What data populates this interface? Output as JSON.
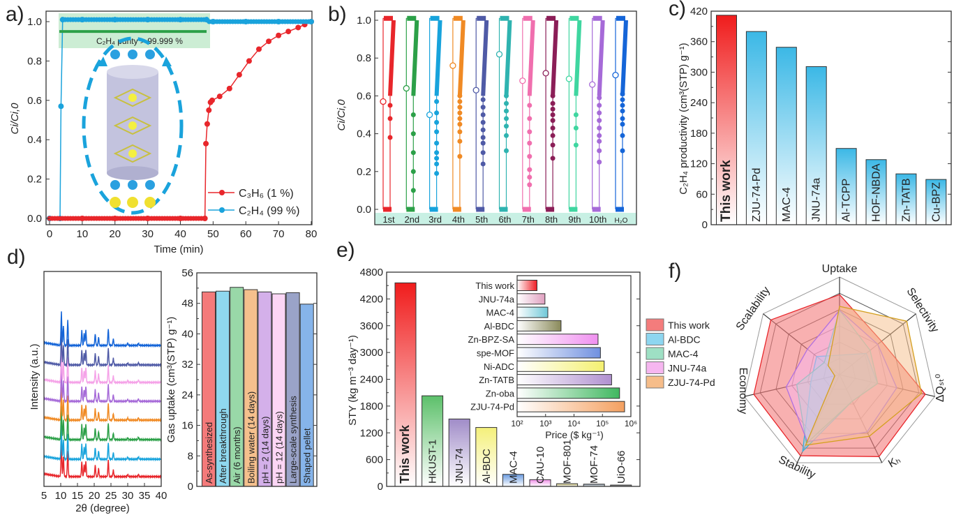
{
  "panel_labels": {
    "a": "a)",
    "b": "b)",
    "c": "c)",
    "d": "d)",
    "e": "e)",
    "f": "f)"
  },
  "chart_data": [
    {
      "id": "a",
      "type": "line",
      "xlabel": "Time (min)",
      "ylabel": "Ci/Ci,0",
      "xlim": [
        0,
        80
      ],
      "ylim": [
        0,
        1.0
      ],
      "xticks": [
        0,
        10,
        20,
        30,
        40,
        50,
        60,
        70,
        80
      ],
      "yticks": [
        "0.0",
        "0.2",
        "0.4",
        "0.6",
        "0.8",
        "1.0"
      ],
      "annotation": "C₂H₄ purity > 99.999 %",
      "series": [
        {
          "name": "C₃H₆ (1 %)",
          "color": "#e8262b",
          "x": [
            0,
            10,
            20,
            30,
            40,
            47.5,
            47.8,
            48.2,
            48.7,
            49.2,
            49.7,
            52,
            55,
            58,
            61,
            64,
            67,
            70,
            73,
            76,
            78,
            80
          ],
          "y": [
            0,
            0,
            0,
            0,
            0,
            0,
            0.38,
            0.48,
            0.55,
            0.59,
            0.6,
            0.62,
            0.66,
            0.73,
            0.8,
            0.86,
            0.9,
            0.93,
            0.95,
            0.97,
            0.985,
            1.0
          ]
        },
        {
          "name": "C₂H₄ (99 %)",
          "color": "#1aa3dc",
          "x": [
            0,
            3.2,
            3.5,
            4,
            10,
            20,
            30,
            40,
            48,
            50,
            60,
            70,
            80
          ],
          "y": [
            0,
            0,
            0.57,
            1.01,
            1.01,
            1.01,
            1.01,
            1.01,
            1.01,
            1.0,
            1.0,
            1.0,
            1.0
          ]
        },
        {
          "name": "",
          "color": "#2ca048",
          "x": [
            3,
            48
          ],
          "y": [
            0.95,
            0.95
          ]
        }
      ]
    },
    {
      "id": "b",
      "type": "scatter",
      "ylabel": "Ci/Ci,0",
      "ylim": [
        0,
        1.0
      ],
      "yticks": [
        "0.0",
        "0.2",
        "0.4",
        "0.6",
        "0.8",
        "1.0"
      ],
      "cycles": [
        {
          "label": "1st",
          "color": "#e8262b",
          "open_point": 0.57,
          "dots": [
            0.55,
            0.48,
            0.38
          ]
        },
        {
          "label": "2nd",
          "color": "#2ca048",
          "open_point": 0.64,
          "dots": [
            0.5,
            0.4,
            0.3,
            0.2,
            0.1
          ]
        },
        {
          "label": "3rd",
          "color": "#17a3dc",
          "open_point": 0.5,
          "dots": [
            0.57,
            0.51,
            0.46,
            0.41,
            0.35,
            0.3,
            0.27,
            0.24,
            0.19
          ]
        },
        {
          "label": "4th",
          "color": "#f08a24",
          "open_point": 0.76,
          "dots": [
            0.6,
            0.57,
            0.54,
            0.51,
            0.48,
            0.45,
            0.41,
            0.36,
            0.28
          ]
        },
        {
          "label": "5th",
          "color": "#4f5aa6",
          "open_point": 0.63,
          "dots": [
            0.58,
            0.54,
            0.5,
            0.46,
            0.42,
            0.38,
            0.35,
            0.3,
            0.24
          ]
        },
        {
          "label": "6th",
          "color": "#2fb3b0",
          "open_point": 0.82,
          "dots": [
            0.6,
            0.56,
            0.52,
            0.48,
            0.44,
            0.39,
            0.31
          ]
        },
        {
          "label": "7th",
          "color": "#f06fae",
          "open_point": 0.68,
          "dots": [
            0.55,
            0.48,
            0.41,
            0.35,
            0.28,
            0.21,
            0.17,
            0.13
          ]
        },
        {
          "label": "8th",
          "color": "#8b1e57",
          "open_point": 0.72,
          "dots": [
            0.6,
            0.56,
            0.53,
            0.5,
            0.47,
            0.43,
            0.39,
            0.34,
            0.27
          ]
        },
        {
          "label": "9th",
          "color": "#3fd6a0",
          "open_point": 0.69,
          "dots": [
            0.5,
            0.43,
            0.34
          ]
        },
        {
          "label": "10th",
          "color": "#a66ad8",
          "open_point": 0.66,
          "dots": [
            0.59,
            0.55,
            0.51,
            0.47,
            0.43,
            0.39,
            0.36,
            0.31,
            0.25
          ]
        },
        {
          "label": "H₂O",
          "color": "#1565d8",
          "open_point": 0.71,
          "dots": [
            0.61,
            0.58,
            0.55,
            0.52,
            0.48,
            0.45,
            0.39,
            0.31
          ]
        }
      ]
    },
    {
      "id": "c",
      "type": "bar",
      "ylabel": "C₂H₄ productivity (cm³(STP) g⁻¹)",
      "ylim": [
        0,
        420
      ],
      "yticks": [
        "0",
        "60",
        "120",
        "180",
        "240",
        "300",
        "360",
        "420"
      ],
      "categories": [
        "This work",
        "ZJU-74-Pd",
        "MAC-4",
        "JNU-74a",
        "Al-TCPP",
        "HOF-NBDA",
        "Zn-TATB",
        "Cu-BPZ"
      ],
      "values": [
        412,
        380,
        349,
        311,
        150,
        128,
        100,
        89
      ],
      "colors": [
        "#f01c1c",
        "#3bb8e6",
        "#3bb8e6",
        "#3bb8e6",
        "#3bb8e6",
        "#3bb8e6",
        "#3bb8e6",
        "#3bb8e6"
      ]
    },
    {
      "id": "d-xrd",
      "type": "line",
      "xlabel": "2θ (degree)",
      "ylabel": "Intensity (a.u.)",
      "xlim": [
        5,
        40
      ],
      "xticks": [
        5,
        10,
        15,
        20,
        25,
        30,
        35,
        40
      ],
      "peaks_deg": [
        10.2,
        10.8,
        12.1,
        16.3,
        17.0,
        17.5,
        20.3,
        21.3,
        24.2,
        25.7,
        30.0,
        33.2
      ],
      "peak_rel_heights": [
        1.0,
        0.6,
        0.75,
        0.45,
        0.35,
        0.45,
        0.35,
        0.25,
        0.5,
        0.2,
        0.06,
        0.07
      ],
      "traces_bottom_to_top": [
        "#e8262b",
        "#17a3dc",
        "#2ca048",
        "#f08a24",
        "#a66ad8",
        "#f5a3e8",
        "#4f5aa6",
        "#1565d8"
      ]
    },
    {
      "id": "d-uptake",
      "type": "bar",
      "ylabel": "Gas uptake (cm³(STP) g⁻¹)",
      "ylim": [
        0,
        56
      ],
      "yticks": [
        "0",
        "8",
        "16",
        "24",
        "32",
        "40",
        "48",
        "56"
      ],
      "categories": [
        "As-synthesized",
        "After breakthrough",
        "Air (6 months)",
        "Boiling water (14 days)",
        "pH = 2 (14 days)",
        "pH = 12 (14 days)",
        "Large-scale synthesis",
        "Shaped pellet"
      ],
      "values": [
        51.0,
        51.2,
        52.2,
        51.6,
        51.0,
        50.5,
        50.8,
        47.8
      ],
      "colors": [
        "#f47a7a",
        "#8fd8ef",
        "#99d8a8",
        "#f5c08d",
        "#d4b0ea",
        "#fcd6f5",
        "#9aa3c8",
        "#86b4ea"
      ]
    },
    {
      "id": "e",
      "type": "bar",
      "ylabel": "STY (kg m⁻³ day⁻¹)",
      "ylim": [
        0,
        4800
      ],
      "yticks": [
        "0",
        "600",
        "1200",
        "1800",
        "2400",
        "3000",
        "3600",
        "4200",
        "4800"
      ],
      "categories": [
        "This work",
        "HKUST-1",
        "JNU-74",
        "Al-BDC",
        "MAC-4",
        "CAU-10",
        "MOF-801",
        "MOF-74",
        "UiO-66"
      ],
      "values": [
        4560,
        2030,
        1510,
        1320,
        270,
        150,
        60,
        50,
        30
      ],
      "colors": [
        "#f01c1c",
        "#5cc06a",
        "#a08cc8",
        "#f4f07a",
        "#6a9be0",
        "#f090e8",
        "#c8c070",
        "#708090",
        "#404040"
      ],
      "inset": {
        "type": "bar-horizontal",
        "xlabel": "Price ($ kg⁻¹)",
        "xscale": "log",
        "xlim": [
          100,
          1000000
        ],
        "xticks": [
          "10²",
          "10³",
          "10⁴",
          "10⁵",
          "10⁶"
        ],
        "categories": [
          "This work",
          "JNU-74a",
          "MAC-4",
          "Al-BDC",
          "Zn-BPZ-SA",
          "spe-MOF",
          "Ni-ADC",
          "Zn-TATB",
          "Zn-oba",
          "ZJU-74-Pd"
        ],
        "values": [
          500,
          950,
          1200,
          3500,
          70000,
          85000,
          115000,
          210000,
          400000,
          600000
        ],
        "colors": [
          "#ee1c24",
          "#e0a0c0",
          "#70c8d8",
          "#8a8a5a",
          "#f090f0",
          "#7090e0",
          "#f4f070",
          "#b090d0",
          "#40b860",
          "#f4a060"
        ]
      }
    },
    {
      "id": "f",
      "type": "radar",
      "axes": [
        "Uptake",
        "Selectivity",
        "ΔQₛₜ⁰",
        "Kₕ",
        "Stability",
        "Economy",
        "Scalability"
      ],
      "rmax": 1.0,
      "legend_position": "left",
      "series": [
        {
          "name": "This work",
          "fill": "#f47c7c",
          "stroke": "#e8262b",
          "values": [
            0.82,
            0.55,
            0.9,
            0.93,
            0.92,
            0.9,
            0.9
          ]
        },
        {
          "name": "Al-BDC",
          "fill": "#8dd6f0",
          "stroke": "#35b0d8",
          "values": [
            0.2,
            0.35,
            0.4,
            0.3,
            0.87,
            0.3,
            0.3
          ]
        },
        {
          "name": "MAC-4",
          "fill": "#9ee0c4",
          "stroke": "#52c49a",
          "values": [
            0.66,
            0.4,
            0.4,
            0.3,
            0.78,
            0.45,
            0.2
          ]
        },
        {
          "name": "JNU-74a",
          "fill": "#f6b6f0",
          "stroke": "#b070e0",
          "values": [
            0.66,
            0.5,
            0.6,
            0.65,
            0.76,
            0.56,
            0.42
          ]
        },
        {
          "name": "ZJU-74-Pd",
          "fill": "#f6bd8a",
          "stroke": "#d4a020",
          "values": [
            0.7,
            0.88,
            0.86,
            0.7,
            0.8,
            0.05,
            0.15
          ]
        }
      ]
    }
  ]
}
